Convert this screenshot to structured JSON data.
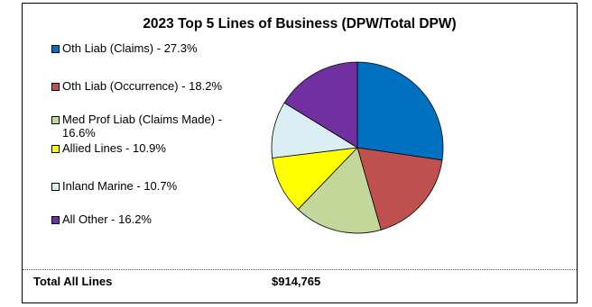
{
  "chart_data": {
    "type": "pie",
    "title": "2023 Top 5 Lines of Business  (DPW/Total DPW)",
    "slices": [
      {
        "label": "Oth Liab (Claims) - 27.3%",
        "value": 27.3,
        "color": "#0070C0"
      },
      {
        "label": "Oth Liab (Occurrence) - 18.2%",
        "value": 18.2,
        "color": "#C0504D"
      },
      {
        "label": "Med Prof Liab (Claims Made) - 16.6%",
        "value": 16.6,
        "color": "#C4D79B"
      },
      {
        "label": "Allied Lines - 10.9%",
        "value": 10.9,
        "color": "#FFFF00"
      },
      {
        "label": "Inland Marine - 10.7%",
        "value": 10.7,
        "color": "#DAEEF3"
      },
      {
        "label": "All Other - 16.2%",
        "value": 16.2,
        "color": "#7030A0"
      }
    ],
    "legend_position": "left"
  },
  "footer": {
    "total_label": "Total All Lines",
    "total_value": "$914,765"
  }
}
